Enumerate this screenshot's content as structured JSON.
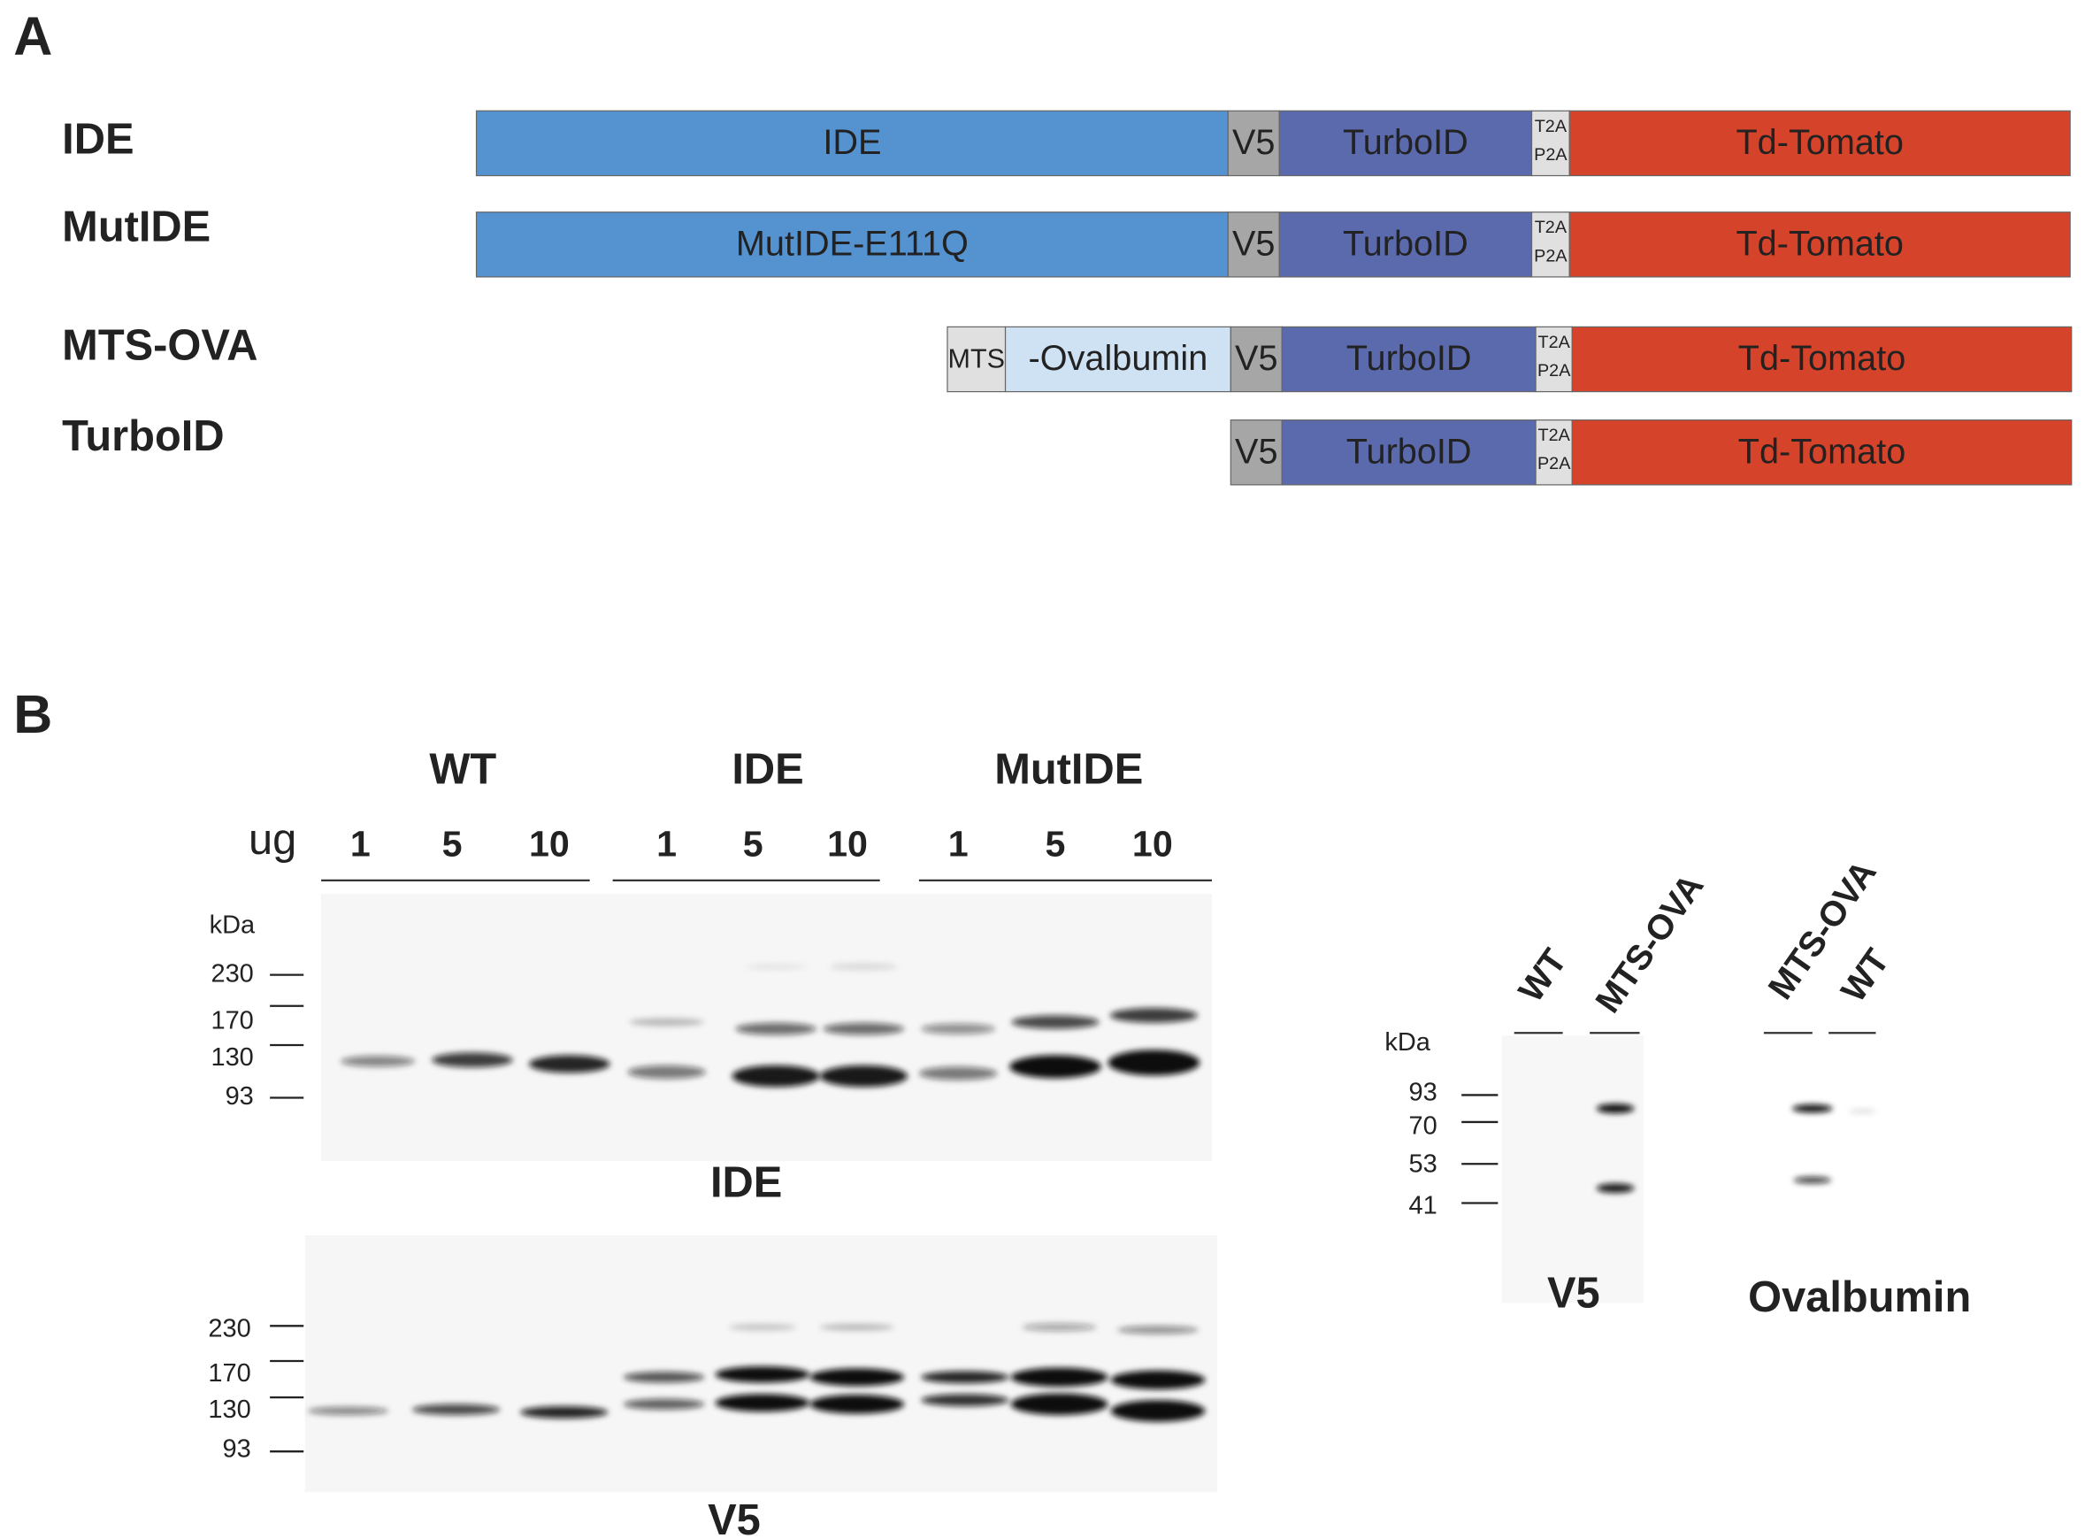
{
  "panel_a": {
    "label": "A",
    "constructs": [
      {
        "name": "IDE",
        "segments": [
          "IDE",
          "V5",
          "TurboID",
          [
            "T2A",
            "P2A"
          ],
          "Td-Tomato"
        ]
      },
      {
        "name": "MutIDE",
        "segments": [
          "MutIDE-E111Q",
          "V5",
          "TurboID",
          [
            "T2A",
            "P2A"
          ],
          "Td-Tomato"
        ]
      },
      {
        "name": "MTS-OVA",
        "segments": [
          "MTS",
          "-Ovalbumin",
          "V5",
          "TurboID",
          [
            "T2A",
            "P2A"
          ],
          "Td-Tomato"
        ]
      },
      {
        "name": "TurboID",
        "segments": [
          "V5",
          "TurboID",
          [
            "T2A",
            "P2A"
          ],
          "Td-Tomato"
        ]
      }
    ]
  },
  "panel_b": {
    "label": "B",
    "groups": [
      "WT",
      "IDE",
      "MutIDE"
    ],
    "amount_label": "ug",
    "lanes": [
      "1",
      "5",
      "10",
      "1",
      "5",
      "10",
      "1",
      "5",
      "10"
    ],
    "blots": [
      {
        "unit": "kDa",
        "markers": [
          "230",
          "170",
          "130",
          "93"
        ],
        "caption": "IDE"
      },
      {
        "markers": [
          "230",
          "170",
          "130",
          "93"
        ],
        "caption": "V5"
      }
    ],
    "inset": {
      "lanes_v5": [
        "WT",
        "MTS-OVA"
      ],
      "lanes_ova": [
        "MTS-OVA",
        "WT"
      ],
      "unit": "kDa",
      "markers": [
        "93",
        "70",
        "53",
        "41"
      ],
      "captions": [
        "V5",
        "Ovalbumin"
      ]
    }
  }
}
